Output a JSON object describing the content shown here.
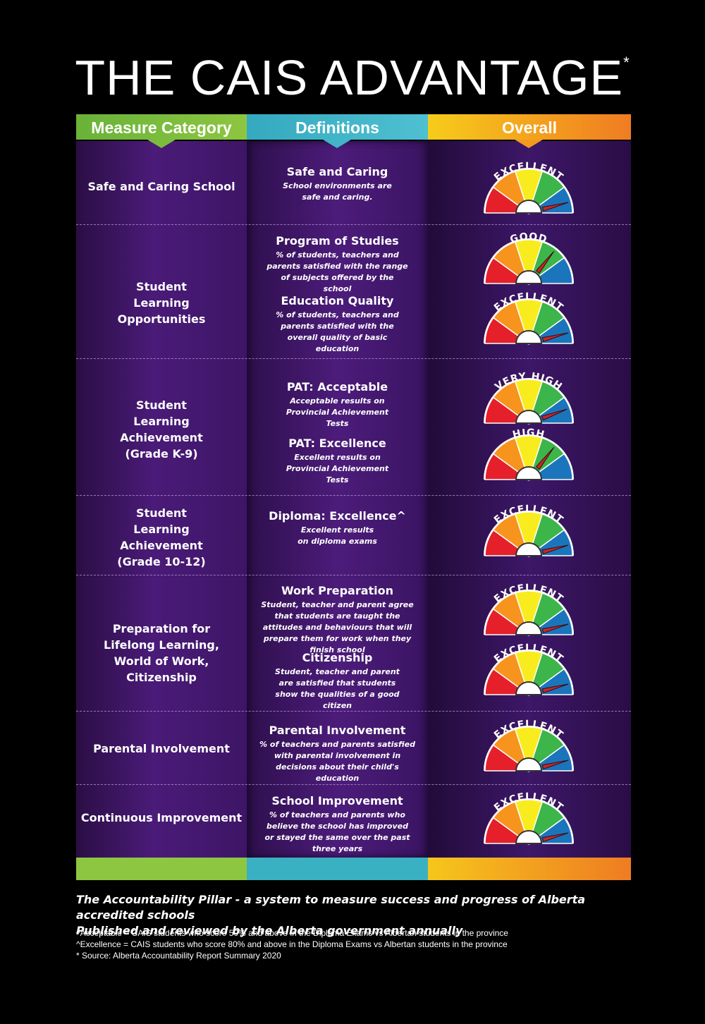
{
  "title": "THE CAIS ADVANTAGE",
  "title_mark": "*",
  "headers": {
    "category": "Measure Category",
    "definitions": "Definitions",
    "overall": "Overall"
  },
  "rows": [
    {
      "category": "Safe and Caring School",
      "measures": [
        {
          "name": "Safe and Caring",
          "description": "School environments are safe and caring.",
          "rating": "EXCELLENT"
        }
      ]
    },
    {
      "category": "Student Learning Opportunities",
      "measures": [
        {
          "name": "Program of Studies",
          "description": "% of students, teachers and parents satisfied with the range of subjects offered by the school",
          "rating": "GOOD"
        },
        {
          "name": "Education Quality",
          "description": "% of students, teachers and parents satisfied with the overall quality of basic education",
          "rating": "EXCELLENT"
        }
      ]
    },
    {
      "category": "Student Learning Achievement (Grade K-9)",
      "measures": [
        {
          "name": "PAT: Acceptable",
          "description": "Acceptable results on Provincial Achievement Tests",
          "rating": "VERY HIGH"
        },
        {
          "name": "PAT: Excellence",
          "description": "Excellent results on Provincial Achievement Tests",
          "rating": "HIGH"
        }
      ]
    },
    {
      "category": "Student Learning Achievement (Grade 10-12)",
      "measures": [
        {
          "name": "Diploma: Excellence^",
          "description": "Excellent results on diploma exams",
          "rating": "EXCELLENT"
        }
      ]
    },
    {
      "category": "Preparation for Lifelong Learning, World of Work, Citizenship",
      "measures": [
        {
          "name": "Work Preparation",
          "description": "Student, teacher and parent agree that students are taught the attitudes and behaviours that will prepare them for work when they finish school",
          "rating": "EXCELLENT"
        },
        {
          "name": "Citizenship",
          "description": "Student, teacher and parent are satisfied that students show the qualities of a good citizen",
          "rating": "EXCELLENT"
        }
      ]
    },
    {
      "category": "Parental Involvement",
      "measures": [
        {
          "name": "Parental Involvement",
          "description": "% of teachers and parents satisfied with parental involvement in decisions about their child's education",
          "rating": "EXCELLENT"
        }
      ]
    },
    {
      "category": "Continuous Improvement",
      "measures": [
        {
          "name": "School Improvement",
          "description": "% of teachers and parents who believe the school has improved or stayed the same over the past three years",
          "rating": "EXCELLENT"
        }
      ]
    }
  ],
  "gauge_colors": [
    "#e5202b",
    "#f7941d",
    "#f9ec1e",
    "#3cb54a",
    "#1b75bc"
  ],
  "needle_color": "#c1272d",
  "footer": {
    "pillar_line1": "The Accountability Pillar - a system to measure success and progress of Alberta accredited schools",
    "pillar_line2": "Published and reviewed by the Alberta government annually",
    "note_acceptable": "^Acceptable = CAIS students who score 50% and above in the Diploma Exams vs Albertan students in the province",
    "note_excellence": "^Excellence = CAIS students who score 80% and above in the Diploma Exams vs Albertan students in the province",
    "note_source": "* Source: Alberta Accountability Report Summary 2020"
  }
}
